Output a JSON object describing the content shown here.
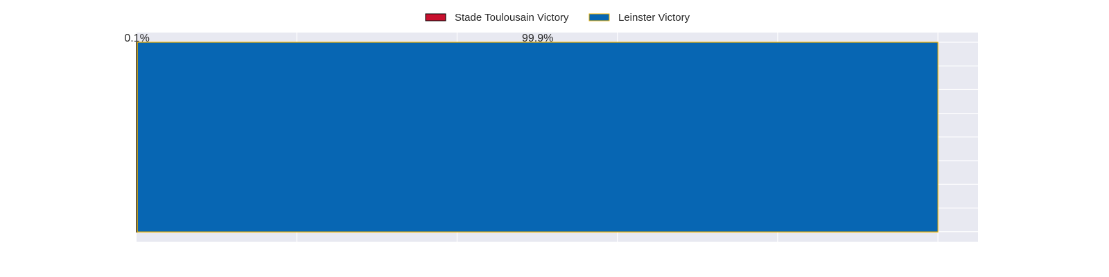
{
  "chart_data": {
    "type": "bar",
    "orientation": "horizontal",
    "stacked": true,
    "categories": [
      ""
    ],
    "xlim": [
      0,
      105
    ],
    "grid": true,
    "legend_placement": "top-center",
    "series": [
      {
        "name": "Stade Toulousain Victory",
        "values": [
          0.1
        ],
        "label": "0.1%",
        "color": "#c8102e",
        "edgecolor": "#000000"
      },
      {
        "name": "Leinster Victory",
        "values": [
          99.9
        ],
        "label": "99.9%",
        "color": "#0766b3",
        "edgecolor": "#f2b400"
      }
    ],
    "colors": {
      "background": "#ffffff",
      "plot_area": "#e8e9f1",
      "grid": "#ffffff"
    }
  }
}
